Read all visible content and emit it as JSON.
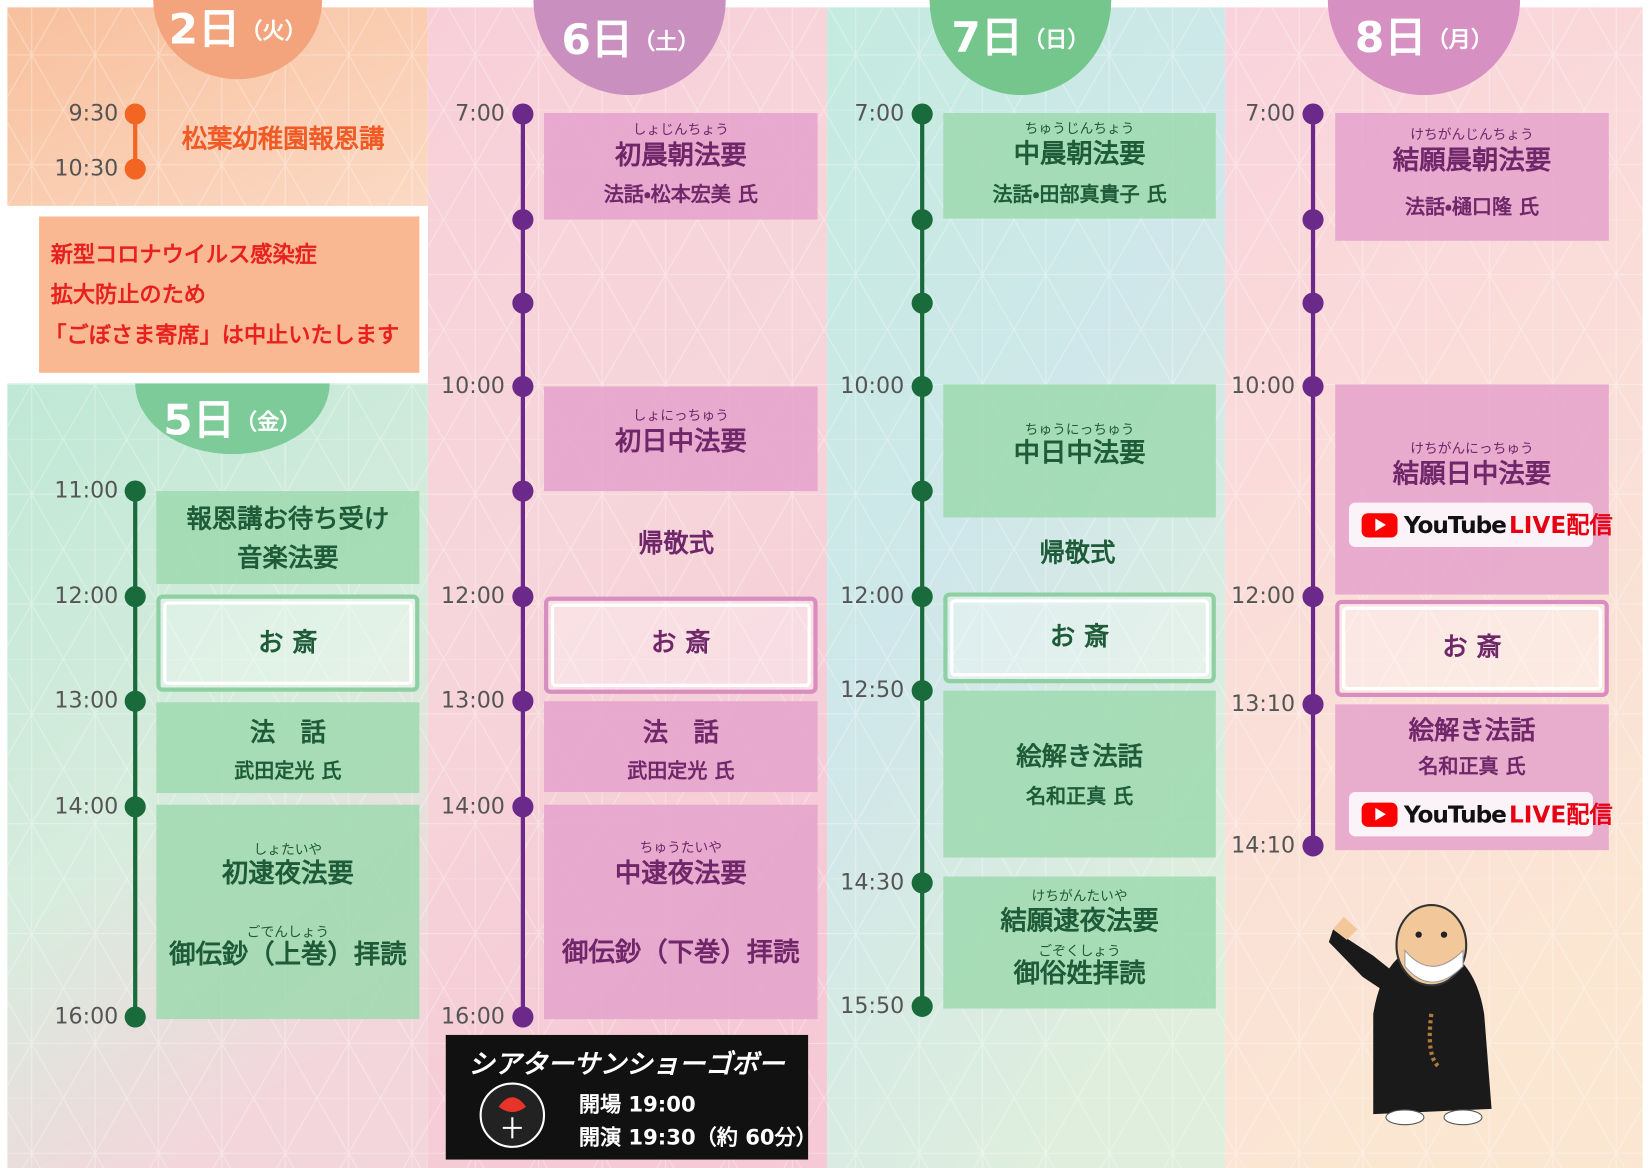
{
  "days": [
    {
      "date": "2日",
      "weekday": "（火）",
      "times": [
        "9:30",
        "10:30"
      ],
      "events": [
        {
          "title": "松葉幼稚園報恩講"
        }
      ]
    },
    {
      "date": "5日",
      "weekday": "（金）",
      "times": [
        "11:00",
        "12:00",
        "13:00",
        "14:00",
        "16:00"
      ],
      "events": [
        {
          "title": "報恩講お待ち受け",
          "detail": "音楽法要"
        },
        {
          "title": "お 斎"
        },
        {
          "title": "法　話",
          "detail": "武田定光 氏"
        },
        {
          "ruby": "しょたいや",
          "title": "初逮夜法要",
          "detail_ruby": "ごでんしょう",
          "detail": "御伝鈔（上巻）拝読"
        }
      ]
    },
    {
      "date": "6日",
      "weekday": "（土）",
      "times": [
        "7:00",
        "10:00",
        "12:00",
        "13:00",
        "14:00",
        "16:00"
      ],
      "events": [
        {
          "ruby": "しょじんちょう",
          "title": "初晨朝法要",
          "detail": "法話・松本宏美 氏"
        },
        {
          "ruby": "しょにっちゅう",
          "title": "初日中法要"
        },
        {
          "title": "帰敬式"
        },
        {
          "title": "お 斎"
        },
        {
          "title": "法　話",
          "detail": "武田定光 氏"
        },
        {
          "ruby": "ちゅうたいや",
          "title": "中逮夜法要",
          "detail": "御伝鈔（下巻）拝読"
        }
      ]
    },
    {
      "date": "7日",
      "weekday": "（日）",
      "times": [
        "7:00",
        "10:00",
        "12:00",
        "12:50",
        "14:30",
        "15:50"
      ],
      "events": [
        {
          "ruby": "ちゅうじんちょう",
          "title": "中晨朝法要",
          "detail": "法話・田部真貴子 氏"
        },
        {
          "ruby": "ちゅうにっちゅう",
          "title": "中日中法要"
        },
        {
          "title": "帰敬式"
        },
        {
          "title": "お 斎"
        },
        {
          "title": "絵解き法話",
          "detail": "名和正真 氏"
        },
        {
          "ruby": "けちがんたいや",
          "title": "結願逮夜法要",
          "detail_ruby": "ごぞくしょう",
          "detail": "御俗姓拝読"
        }
      ]
    },
    {
      "date": "8日",
      "weekday": "（月）",
      "times": [
        "7:00",
        "10:00",
        "12:00",
        "13:10",
        "14:10"
      ],
      "events": [
        {
          "ruby": "けちがんじんちょう",
          "title": "結願晨朝法要",
          "detail": "法話・樋口隆 氏"
        },
        {
          "ruby": "けちがんにっちゅう",
          "title": "結願日中法要",
          "stream": {
            "brand": "YouTube",
            "label": "LIVE配信"
          }
        },
        {
          "title": "お 斎"
        },
        {
          "title": "絵解き法話",
          "detail": "名和正真 氏",
          "stream": {
            "brand": "YouTube",
            "label": "LIVE配信"
          }
        }
      ]
    }
  ],
  "notice": [
    "新型コロナウイルス感染症",
    "拡大防止のため",
    "「ごぼさま寄席」は中止いたします"
  ],
  "theater": {
    "name": "シアターサンショーゴボー",
    "open": "開場 19:00",
    "start": "開演 19:30（約 60分）"
  }
}
